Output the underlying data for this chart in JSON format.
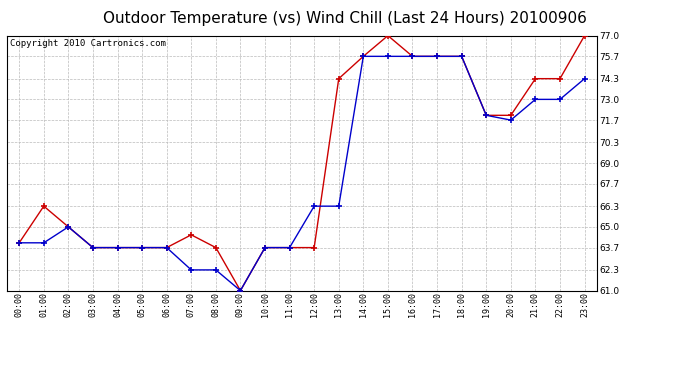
{
  "title": "Outdoor Temperature (vs) Wind Chill (Last 24 Hours) 20100906",
  "copyright": "Copyright 2010 Cartronics.com",
  "x_labels": [
    "00:00",
    "01:00",
    "02:00",
    "03:00",
    "04:00",
    "05:00",
    "06:00",
    "07:00",
    "08:00",
    "09:00",
    "10:00",
    "11:00",
    "12:00",
    "13:00",
    "14:00",
    "15:00",
    "16:00",
    "17:00",
    "18:00",
    "19:00",
    "20:00",
    "21:00",
    "22:00",
    "23:00"
  ],
  "temp": [
    64.0,
    66.3,
    65.0,
    63.7,
    63.7,
    63.7,
    63.7,
    64.5,
    63.7,
    61.0,
    63.7,
    63.7,
    63.7,
    74.3,
    75.7,
    77.0,
    75.7,
    75.7,
    75.7,
    72.0,
    72.0,
    74.3,
    74.3,
    77.0
  ],
  "wind_chill": [
    64.0,
    64.0,
    65.0,
    63.7,
    63.7,
    63.7,
    63.7,
    62.3,
    62.3,
    61.0,
    63.7,
    63.7,
    66.3,
    66.3,
    75.7,
    75.7,
    75.7,
    75.7,
    75.7,
    72.0,
    71.7,
    73.0,
    73.0,
    74.3
  ],
  "temp_color": "#cc0000",
  "wind_chill_color": "#0000cc",
  "ylim": [
    61.0,
    77.0
  ],
  "yticks": [
    61.0,
    62.3,
    63.7,
    65.0,
    66.3,
    67.7,
    69.0,
    70.3,
    71.7,
    73.0,
    74.3,
    75.7,
    77.0
  ],
  "bg_color": "#ffffff",
  "plot_bg_color": "#ffffff",
  "grid_color": "#bbbbbb",
  "title_fontsize": 11,
  "copyright_fontsize": 6.5
}
